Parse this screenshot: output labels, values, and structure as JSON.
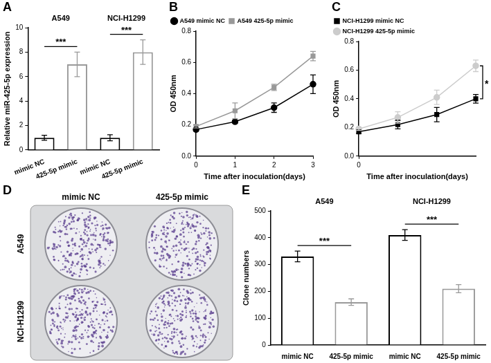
{
  "chart_data": [
    {
      "panel": "A",
      "type": "bar",
      "categories": [
        "mimic NC",
        "425-5p mimic",
        "mimic NC",
        "425-5p mimic"
      ],
      "values": [
        1.0,
        7.0,
        1.0,
        8.0
      ],
      "errors": [
        0.2,
        1.0,
        0.25,
        1.0
      ],
      "colors": [
        "#000000",
        "#999999",
        "#000000",
        "#999999"
      ],
      "groups": [
        "A549",
        "NCI-H1299"
      ],
      "group_annotations": [
        "***",
        "***"
      ],
      "y_label": "Relative miR-425-5p expression",
      "ylim": [
        0,
        10
      ],
      "yticks": [
        0,
        2,
        4,
        6,
        8,
        10
      ],
      "grid": false
    },
    {
      "panel": "B",
      "type": "line",
      "x": [
        0,
        1,
        2,
        3
      ],
      "series": [
        {
          "name": "A549 mimic NC",
          "color": "#000000",
          "marker": "circle",
          "values": [
            0.17,
            0.22,
            0.31,
            0.46
          ],
          "errors": [
            0.01,
            0.01,
            0.03,
            0.06
          ]
        },
        {
          "name": "A549 425-5p mimic",
          "color": "#999999",
          "marker": "square",
          "values": [
            0.19,
            0.29,
            0.44,
            0.64
          ],
          "errors": [
            0.01,
            0.05,
            0.02,
            0.03
          ]
        }
      ],
      "x_label": "Time after inoculation(days)",
      "y_label": "OD 450nm",
      "xlim": [
        0,
        3
      ],
      "xticks": [
        0,
        1,
        2,
        3
      ],
      "ylim": [
        0,
        0.8
      ],
      "yticks": [
        {
          "value": 0,
          "label": "0.0"
        },
        {
          "value": 0.2,
          "label": "0.2"
        },
        {
          "value": 0.4,
          "label": "0.4"
        },
        {
          "value": 0.6,
          "label": "0.6"
        },
        {
          "value": 0.8,
          "label": "0.8"
        }
      ],
      "legend": "upper left",
      "grid": false
    },
    {
      "panel": "C",
      "type": "line",
      "x": [
        0,
        1,
        2,
        3
      ],
      "series": [
        {
          "name": "NCI-H1299 mimic NC",
          "color": "#000000",
          "marker": "square",
          "values": [
            0.17,
            0.22,
            0.29,
            0.4
          ],
          "errors": [
            0.01,
            0.03,
            0.05,
            0.03
          ]
        },
        {
          "name": "NCI-H1299 425-5p mimic",
          "color": "#cccccc",
          "marker": "circle",
          "values": [
            0.19,
            0.27,
            0.41,
            0.63
          ],
          "errors": [
            0.01,
            0.04,
            0.05,
            0.04
          ]
        }
      ],
      "annotations": [
        "*"
      ],
      "x_label": "Time after inoculation(days)",
      "y_label": "OD 450nm",
      "xlim": [
        0,
        3
      ],
      "xticks": [
        0
      ],
      "ylim": [
        0,
        0.8
      ],
      "yticks": [
        {
          "value": 0,
          "label": "0.0"
        },
        {
          "value": 0.2,
          "label": "0.2"
        },
        {
          "value": 0.4,
          "label": "0.4"
        },
        {
          "value": 0.6,
          "label": "0.6"
        },
        {
          "value": 0.8,
          "label": "0.8"
        }
      ],
      "legend": "upper left",
      "grid": false
    },
    {
      "panel": "E",
      "type": "bar",
      "categories": [
        "mimic NC",
        "425-5p mimic",
        "mimic NC",
        "425-5p mimic"
      ],
      "values": [
        330,
        160,
        410,
        210
      ],
      "errors": [
        20,
        12,
        20,
        15
      ],
      "colors": [
        "#000000",
        "#999999",
        "#000000",
        "#999999"
      ],
      "groups": [
        "A549",
        "NCI-H1299"
      ],
      "group_annotations": [
        "***",
        "***"
      ],
      "y_label": "Clone numbers",
      "ylim": [
        0,
        500
      ],
      "yticks": [
        0,
        100,
        200,
        300,
        400,
        500
      ],
      "grid": false
    }
  ],
  "image": {
    "panel": "D",
    "type": "photo",
    "columns": [
      "mimic NC",
      "425-5p mimic"
    ],
    "rows": [
      "A549",
      "NCI-H1299"
    ]
  }
}
